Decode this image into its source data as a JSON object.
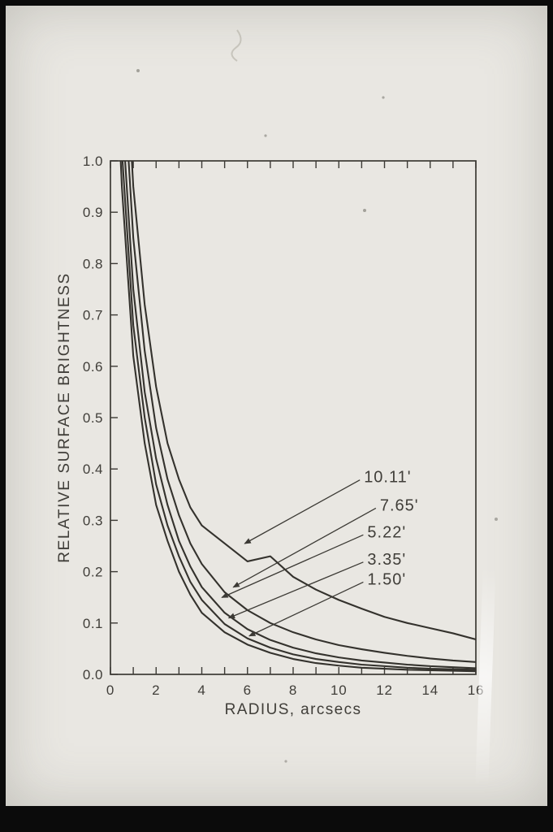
{
  "photo": {
    "paper_color": "#e9e7e2",
    "frame_color": "#0b0b0b",
    "ink_color": "#3c3a35"
  },
  "chart_data": {
    "type": "line",
    "title": "",
    "xlabel": "RADIUS, arcsecs",
    "ylabel": "RELATIVE SURFACE BRIGHTNESS",
    "xlim": [
      0,
      16
    ],
    "ylim": [
      0,
      1.0
    ],
    "grid": false,
    "legend_position": "none (arrow annotations inside plot)",
    "x_tick_values": [
      0,
      2,
      4,
      6,
      8,
      10,
      12,
      14,
      16
    ],
    "x_tick_labels": [
      "0",
      "2",
      "4",
      "6",
      "8",
      "10",
      "12",
      "14",
      "16"
    ],
    "x_minor_tick_step": 1,
    "y_tick_values": [
      0,
      0.1,
      0.2,
      0.3,
      0.4,
      0.5,
      0.6,
      0.7,
      0.8,
      0.9,
      1.0
    ],
    "y_tick_labels": [
      "0.0",
      "0.1",
      "0.2",
      "0.3",
      "0.4",
      "0.5",
      "0.6",
      "0.7",
      "0.8",
      "0.9",
      "1.0"
    ],
    "line_color": "#34322d",
    "x": [
      0,
      0.5,
      1,
      1.5,
      2,
      2.5,
      3,
      3.5,
      4,
      5,
      6,
      7,
      8,
      9,
      10,
      11,
      12,
      13,
      14,
      15,
      16
    ],
    "series": [
      {
        "name": "1.50'",
        "values": [
          1.45,
          0.95,
          0.62,
          0.45,
          0.33,
          0.26,
          0.2,
          0.155,
          0.12,
          0.082,
          0.058,
          0.042,
          0.03,
          0.022,
          0.017,
          0.013,
          0.011,
          0.009,
          0.008,
          0.007,
          0.006
        ]
      },
      {
        "name": "3.35'",
        "values": [
          1.55,
          1.02,
          0.68,
          0.5,
          0.37,
          0.29,
          0.23,
          0.18,
          0.145,
          0.098,
          0.07,
          0.052,
          0.039,
          0.03,
          0.024,
          0.019,
          0.016,
          0.013,
          0.011,
          0.01,
          0.009
        ]
      },
      {
        "name": "5.22'",
        "values": [
          1.65,
          1.1,
          0.75,
          0.55,
          0.42,
          0.33,
          0.26,
          0.21,
          0.17,
          0.12,
          0.088,
          0.067,
          0.052,
          0.041,
          0.033,
          0.027,
          0.023,
          0.019,
          0.016,
          0.014,
          0.012
        ]
      },
      {
        "name": "7.65'",
        "values": [
          1.78,
          1.22,
          0.85,
          0.63,
          0.48,
          0.38,
          0.31,
          0.255,
          0.215,
          0.16,
          0.125,
          0.1,
          0.082,
          0.068,
          0.057,
          0.049,
          0.042,
          0.036,
          0.031,
          0.027,
          0.024
        ]
      },
      {
        "name": "10.11'",
        "values": [
          1.9,
          1.35,
          0.95,
          0.72,
          0.56,
          0.45,
          0.38,
          0.325,
          0.29,
          0.255,
          0.22,
          0.23,
          0.19,
          0.165,
          0.145,
          0.128,
          0.112,
          0.1,
          0.09,
          0.08,
          0.068
        ]
      }
    ],
    "annotations": [
      {
        "label": "10.11'",
        "label_x": 11.1,
        "label_y": 0.385,
        "target_x": 5.7,
        "target_y": 0.25
      },
      {
        "label": "7.65'",
        "label_x": 11.8,
        "label_y": 0.33,
        "target_x": 5.2,
        "target_y": 0.165
      },
      {
        "label": "5.22'",
        "label_x": 11.25,
        "label_y": 0.278,
        "target_x": 4.7,
        "target_y": 0.145
      },
      {
        "label": "3.35'",
        "label_x": 11.25,
        "label_y": 0.225,
        "target_x": 5.0,
        "target_y": 0.105
      },
      {
        "label": "1.50'",
        "label_x": 11.25,
        "label_y": 0.186,
        "target_x": 5.9,
        "target_y": 0.07
      }
    ]
  }
}
